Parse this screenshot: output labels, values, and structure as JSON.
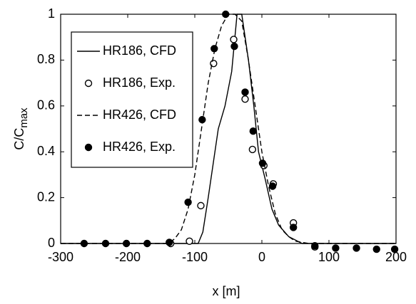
{
  "chart_data": {
    "type": "line_scatter",
    "xlabel": "x [m]",
    "ylabel": "C/C",
    "ylabel_subscript": "max",
    "xlim": [
      -300,
      200
    ],
    "ylim": [
      0,
      1
    ],
    "xticks": [
      -300,
      -200,
      -100,
      0,
      100,
      200
    ],
    "yticks": [
      0,
      0.2,
      0.4,
      0.6,
      0.8,
      1
    ],
    "grid": false,
    "legend_position": "upper left",
    "series": [
      {
        "name": "HR186, CFD",
        "color": "#000000",
        "style": "solid",
        "marker": "none",
        "x": [
          -300,
          -95,
          -88,
          -80,
          -75,
          -65,
          -55,
          -45,
          -37,
          -30,
          -20,
          -12,
          -5,
          5,
          15,
          25,
          40,
          60,
          200
        ],
        "values": [
          0,
          0,
          0.05,
          0.2,
          0.3,
          0.5,
          0.6,
          0.75,
          1,
          1,
          0.8,
          0.6,
          0.4,
          0.28,
          0.15,
          0.08,
          0.03,
          0,
          0
        ]
      },
      {
        "name": "HR186, Exp.",
        "color": "#000000",
        "style": "none",
        "marker": "open",
        "x": [
          -136,
          -108,
          -91,
          -72,
          -42,
          -25,
          -14,
          3,
          17,
          47,
          79
        ],
        "values": [
          0,
          0.01,
          0.165,
          0.785,
          0.89,
          0.63,
          0.41,
          0.34,
          0.26,
          0.09,
          -0.015
        ]
      },
      {
        "name": "HR426, CFD",
        "color": "#000000",
        "style": "dashed",
        "marker": "none",
        "x": [
          -300,
          -140,
          -130,
          -120,
          -110,
          -100,
          -90,
          -80,
          -70,
          -60,
          -50,
          -40,
          -30,
          -20,
          -10,
          0,
          10,
          20,
          30,
          40,
          50,
          70,
          200
        ],
        "values": [
          0,
          0,
          0.02,
          0.06,
          0.15,
          0.3,
          0.5,
          0.7,
          0.85,
          0.95,
          1,
          1,
          0.97,
          0.8,
          0.6,
          0.4,
          0.25,
          0.13,
          0.06,
          0.03,
          0.01,
          0,
          0
        ]
      },
      {
        "name": "HR426, Exp.",
        "color": "#000000",
        "style": "none",
        "marker": "filled",
        "x": [
          -265,
          -233,
          -202,
          -171,
          -138,
          -110,
          -89,
          -71,
          -54,
          -41,
          -25,
          -13,
          1,
          16,
          47,
          79,
          110,
          141,
          171,
          198
        ],
        "values": [
          0,
          0,
          0,
          0,
          0.005,
          0.18,
          0.54,
          0.85,
          1,
          0.86,
          0.66,
          0.49,
          0.35,
          0.25,
          0.07,
          -0.01,
          -0.02,
          -0.02,
          -0.025,
          -0.025
        ]
      }
    ]
  }
}
